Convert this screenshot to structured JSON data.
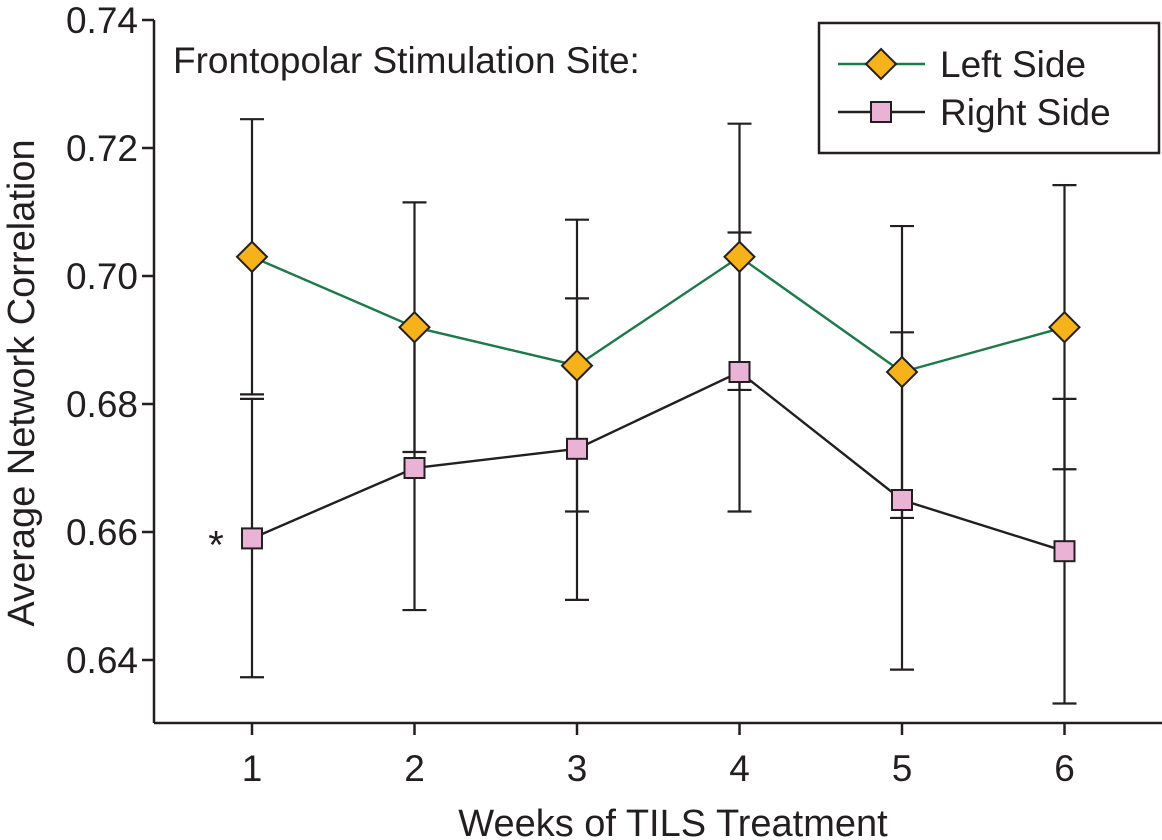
{
  "chart_data": {
    "type": "line",
    "xlabel": "Weeks of TILS Treatment",
    "ylabel": "Average Network Correlation",
    "annotation": "Frontopolar Stimulation Site:",
    "x": [
      1,
      2,
      3,
      4,
      5,
      6
    ],
    "x_tick_labels": [
      "1",
      "2",
      "3",
      "4",
      "5",
      "6"
    ],
    "xlim": [
      0.4,
      6.55
    ],
    "ylim": [
      0.63,
      0.74
    ],
    "y_ticks": [
      0.64,
      0.66,
      0.68,
      0.7,
      0.72,
      0.74
    ],
    "y_tick_labels": [
      "0.64",
      "0.66",
      "0.68",
      "0.70",
      "0.72",
      "0.74"
    ],
    "grid": false,
    "legend_position": "top-right",
    "series": [
      {
        "name": "Left Side",
        "marker": "diamond",
        "line_color": "#1b7a47",
        "marker_color": "#f5b21a",
        "values": [
          0.703,
          0.692,
          0.686,
          0.703,
          0.685,
          0.692
        ],
        "error_upper": [
          0.7245,
          0.7115,
          0.7088,
          0.7238,
          0.7078,
          0.7142
        ],
        "error_lower": [
          0.6815,
          0.6725,
          0.6632,
          0.6822,
          0.6622,
          0.6698
        ]
      },
      {
        "name": "Right Side",
        "marker": "square",
        "line_color": "#231f20",
        "marker_color": "#eab3d6",
        "values": [
          0.659,
          0.67,
          0.673,
          0.685,
          0.665,
          0.657
        ],
        "error_upper": [
          0.6808,
          0.6922,
          0.6965,
          0.7068,
          0.6912,
          0.6808
        ],
        "error_lower": [
          0.6373,
          0.6478,
          0.6494,
          0.6632,
          0.6385,
          0.6332
        ]
      }
    ],
    "markers_text": [
      {
        "text": "*",
        "x": 1,
        "series": "Right Side"
      }
    ],
    "colors": {
      "axis": "#231f20",
      "error_bar": "#231f20",
      "marker_edge": "#231f20"
    }
  }
}
